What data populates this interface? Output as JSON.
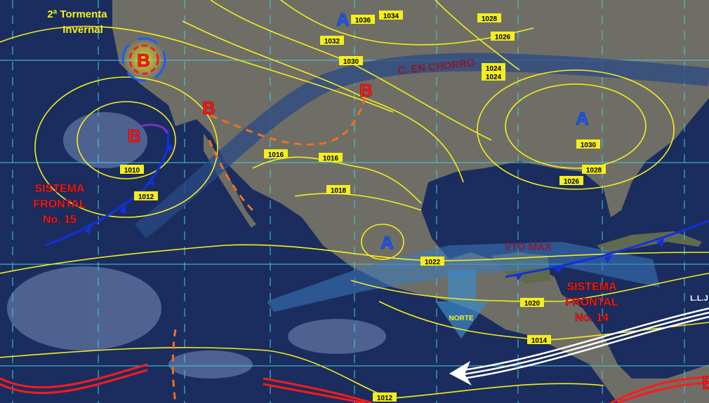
{
  "map": {
    "colors": {
      "ocean": "#1b2d5e",
      "land": "#6f6f68",
      "isobar": "#f4ee1e",
      "high": "#1a5cff",
      "low": "#ff1a1a",
      "cold_front": "#1230e0",
      "jet": "#2a4a86",
      "grid": "#3fd0e0"
    },
    "annotations": {
      "storm": [
        "2ª Tormenta",
        "Invernal"
      ],
      "front15": [
        "SISTEMA",
        "FRONTAL",
        "No. 15"
      ],
      "front14": [
        "SISTEMA",
        "FRONTAL",
        "No. 14"
      ],
      "jet": "C. EN CHORRO",
      "wind_max": "VTO MÁX",
      "norte": "NORTE",
      "llj": "L.L.J"
    },
    "centers": {
      "highs": [
        "A",
        "A",
        "A"
      ],
      "lows": [
        "B",
        "B",
        "B",
        "B",
        "B"
      ]
    },
    "isobar_labels": [
      "1036",
      "1034",
      "1028",
      "1026",
      "1032",
      "1030",
      "1024",
      "1024",
      "1016",
      "1016",
      "1010",
      "1012",
      "1018",
      "1030",
      "1028",
      "1026",
      "1022",
      "1020",
      "1014",
      "1012"
    ]
  }
}
